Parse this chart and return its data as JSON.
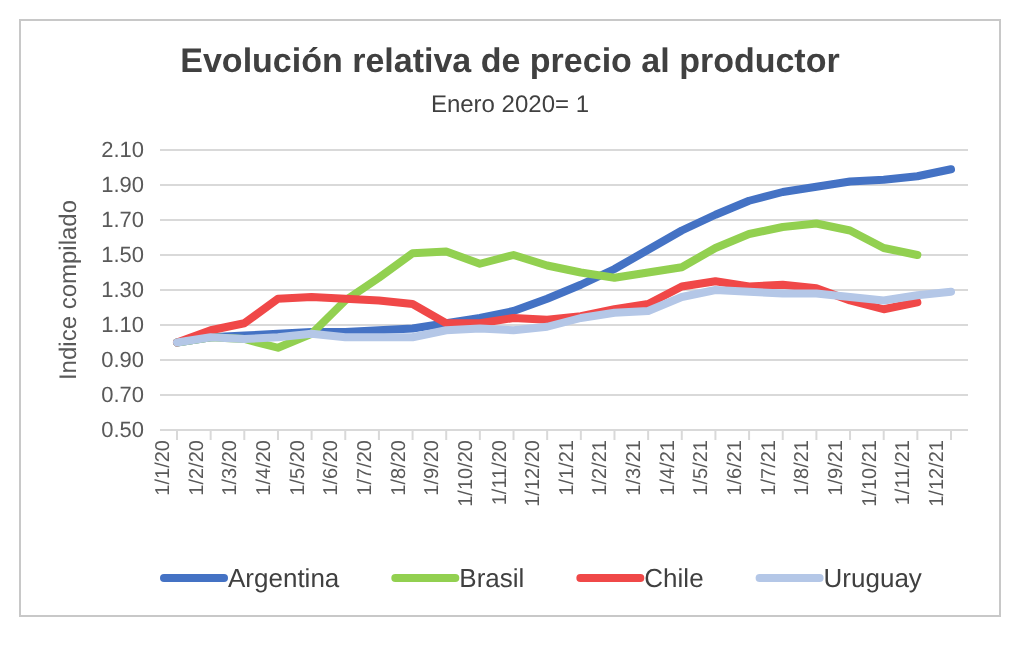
{
  "chart_data": {
    "type": "line",
    "title": "Evolución relativa de precio al productor",
    "subtitle": "Enero 2020= 1",
    "ylabel": "Indice compilado",
    "categories": [
      "1/1/20",
      "1/2/20",
      "1/3/20",
      "1/4/20",
      "1/5/20",
      "1/6/20",
      "1/7/20",
      "1/8/20",
      "1/9/20",
      "1/10/20",
      "1/11/20",
      "1/12/20",
      "1/1/21",
      "1/2/21",
      "1/3/21",
      "1/4/21",
      "1/5/21",
      "1/6/21",
      "1/7/21",
      "1/8/21",
      "1/9/21",
      "1/10/21",
      "1/11/21",
      "1/12/21"
    ],
    "series": [
      {
        "name": "Argentina",
        "color": "#4472c4",
        "values": [
          1.0,
          1.03,
          1.04,
          1.05,
          1.06,
          1.06,
          1.07,
          1.08,
          1.11,
          1.14,
          1.18,
          1.25,
          1.33,
          1.42,
          1.53,
          1.64,
          1.73,
          1.81,
          1.86,
          1.89,
          1.92,
          1.93,
          1.95,
          1.99
        ]
      },
      {
        "name": "Brasil",
        "color": "#92d050",
        "values": [
          1.0,
          1.03,
          1.02,
          0.97,
          1.05,
          1.24,
          1.37,
          1.51,
          1.52,
          1.45,
          1.5,
          1.44,
          1.4,
          1.37,
          1.4,
          1.43,
          1.54,
          1.62,
          1.66,
          1.68,
          1.64,
          1.54,
          1.5,
          null
        ]
      },
      {
        "name": "Chile",
        "color": "#f04848",
        "values": [
          1.0,
          1.07,
          1.11,
          1.25,
          1.26,
          1.25,
          1.24,
          1.22,
          1.11,
          1.11,
          1.14,
          1.13,
          1.15,
          1.19,
          1.22,
          1.32,
          1.35,
          1.32,
          1.33,
          1.31,
          1.24,
          1.19,
          1.23,
          null
        ]
      },
      {
        "name": "Uruguay",
        "color": "#b4c7e7",
        "values": [
          1.0,
          1.03,
          1.02,
          1.03,
          1.05,
          1.03,
          1.03,
          1.03,
          1.07,
          1.08,
          1.07,
          1.09,
          1.14,
          1.17,
          1.18,
          1.26,
          1.3,
          1.29,
          1.28,
          1.28,
          1.26,
          1.24,
          1.27,
          1.29
        ]
      }
    ],
    "ylim": [
      0.5,
      2.1
    ],
    "yticks": [
      {
        "value": 0.5,
        "label": "0.50"
      },
      {
        "value": 0.7,
        "label": "0.70"
      },
      {
        "value": 0.9,
        "label": "0.90"
      },
      {
        "value": 1.1,
        "label": "1.10"
      },
      {
        "value": 1.3,
        "label": "1.30"
      },
      {
        "value": 1.5,
        "label": "1.50"
      },
      {
        "value": 1.7,
        "label": "1.70"
      },
      {
        "value": 1.9,
        "label": "1.90"
      },
      {
        "value": 2.1,
        "label": "2.10"
      }
    ],
    "grid": "y",
    "legend": "bottom",
    "marker": "none",
    "line_style": "solid"
  }
}
